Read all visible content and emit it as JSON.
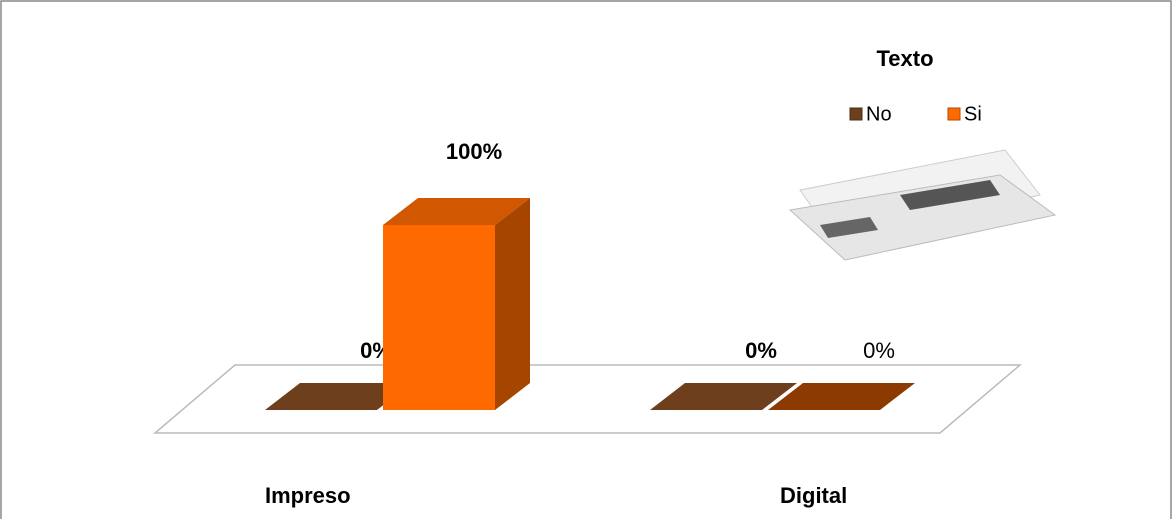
{
  "chart_data": {
    "type": "bar",
    "title": "Texto",
    "categories": [
      "Impreso",
      "Digital"
    ],
    "series": [
      {
        "name": "No",
        "color": "#6e3f1c",
        "values": [
          0,
          0
        ],
        "value_labels": [
          "0%",
          "0%"
        ]
      },
      {
        "name": "Si",
        "color": "#ff6a00",
        "values": [
          100,
          0
        ],
        "value_labels": [
          "100%",
          "0%"
        ]
      }
    ]
  }
}
